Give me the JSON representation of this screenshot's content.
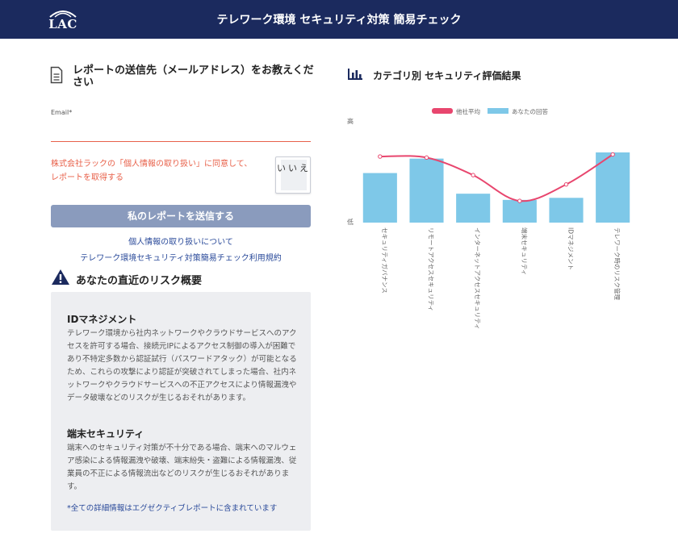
{
  "header": {
    "logo_text": "LAC",
    "title": "テレワーク環境 セキュリティ対策 簡易チェック"
  },
  "form": {
    "heading": "レポートの送信先（メールアドレス）をお教えください",
    "email_label": "Email*",
    "email_value": "",
    "consent_text": "株式会社ラックの「個人情報の取り扱い」に同意して、レポートを取得する",
    "consent_toggle_label": "いいえ",
    "submit_label": "私のレポートを送信する",
    "privacy_link": "個人情報の取り扱いについて",
    "terms_link": "テレワーク環境セキュリティ対策簡易チェック利用規約"
  },
  "risk": {
    "heading": "あなたの直近のリスク概要",
    "sections": [
      {
        "title": "IDマネジメント",
        "body": "テレワーク環境から社内ネットワークやクラウドサービスへのアクセスを許可する場合、接続元IPによるアクセス制御の導入が困難であり不特定多数から認証試行（パスワードアタック）が可能となるため、これらの攻撃により認証が突破されてしまった場合、社内ネットワークやクラウドサービスへの不正アクセスにより情報漏洩やデータ破壊などのリスクが生じるおそれがあります。"
      },
      {
        "title": "端末セキュリティ",
        "body": "端末へのセキュリティ対策が不十分である場合、端末へのマルウェア感染による情報漏洩や破壊、端末紛失・盗難による情報漏洩、従業員の不正による情報流出などのリスクが生じるおそれがあります。"
      }
    ],
    "note": "*全ての詳細情報はエグゼクティブレポートに含まれています"
  },
  "chart_heading": "カテゴリ別 セキュリティ評価結果",
  "colors": {
    "header_bg": "#1b2a5e",
    "accent_red": "#e8614a",
    "bar_blue": "#7ec8e8",
    "line_pink": "#e8466e",
    "button_gray_blue": "#8a9bbd"
  },
  "chart_data": {
    "type": "bar",
    "categories": [
      "セキュリティガバナンス",
      "リモートアクセスセキュリティ",
      "インターネットアクセスセキュリティ",
      "端末セキュリティ",
      "IDマネジメント",
      "テレワーク時のリスク管理"
    ],
    "series": [
      {
        "name": "他社平均",
        "type": "line",
        "values": [
          0.64,
          0.63,
          0.46,
          0.21,
          0.37,
          0.66
        ]
      },
      {
        "name": "あなたの回答",
        "type": "bar",
        "values": [
          0.48,
          0.62,
          0.28,
          0.22,
          0.24,
          0.68
        ]
      }
    ],
    "ytick_labels": {
      "top": "高",
      "bottom": "低"
    },
    "ylim": [
      0,
      1
    ],
    "legend_position": "top-center",
    "grid": false
  }
}
